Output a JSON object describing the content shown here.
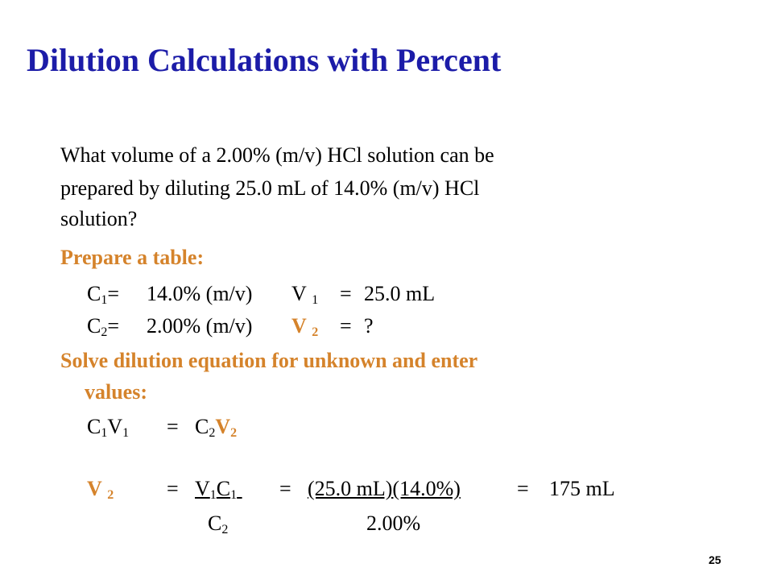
{
  "title": "Dilution Calculations with Percent",
  "question_lines": [
    "What volume of a 2.00% (m/v) HCl solution can be",
    "prepared by diluting 25.0 mL of 14.0% (m/v) HCl",
    "solution?"
  ],
  "table_heading": "Prepare a table:",
  "table": {
    "rows": [
      {
        "c_symbol": "C",
        "c_index": "1",
        "c_equals": "=",
        "c_value": "14.0% (m/v)",
        "v_symbol": "V",
        "v_index": "1",
        "v_equals": "=",
        "v_value": "25.0 mL"
      },
      {
        "c_symbol": "C",
        "c_index": "2",
        "c_equals": "=",
        "c_value": "2.00% (m/v)",
        "v_symbol": "V",
        "v_index": "2",
        "v_equals": "=",
        "v_value": "?"
      }
    ]
  },
  "solve_heading_lines": [
    "Solve dilution equation for unknown and enter",
    "values:"
  ],
  "equation": {
    "c1": "C",
    "c1_index": "1",
    "v1": "V",
    "v1_index": "1",
    "equals": "=",
    "c2": "C",
    "c2_index": "2",
    "v2": "V",
    "v2_index": "2"
  },
  "solution": {
    "lhs": "V",
    "lhs_index": "2",
    "equals_1": "=",
    "numerator_v": "V",
    "numerator_v_index": "1",
    "numerator_c": "C",
    "numerator_c_index": "1",
    "denominator": "C",
    "denominator_index": "2",
    "equals_2": "=",
    "substituted_numerator": "(25.0 mL)(14.0%)",
    "substituted_denominator": "2.00%",
    "equals_3": "=",
    "result": "175 mL"
  },
  "page_number": "25"
}
